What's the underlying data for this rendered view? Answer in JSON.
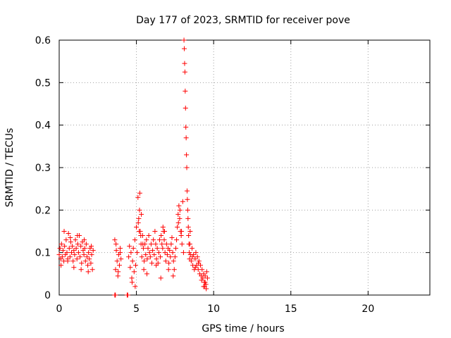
{
  "chart_data": {
    "type": "scatter",
    "title": "Day 177 of 2023, SRMTID for receiver pove",
    "xlabel": "GPS time / hours",
    "ylabel": "SRMTID / TECUs",
    "xlim": [
      0,
      24
    ],
    "ylim": [
      0,
      0.6
    ],
    "xticks": [
      0,
      5,
      10,
      15,
      20
    ],
    "xtick_labels": [
      "0",
      "5",
      "10",
      "15",
      "20"
    ],
    "yticks": [
      0,
      0.1,
      0.2,
      0.3,
      0.4,
      0.5,
      0.6
    ],
    "ytick_labels": [
      "0",
      "0.1",
      "0.2",
      "0.3",
      "0.4",
      "0.5",
      "0.6"
    ],
    "grid": true,
    "marker": "+",
    "color": "#ff0000",
    "series": [
      {
        "name": "SRMTID",
        "x": [
          0.0,
          0.05,
          0.1,
          0.15,
          0.2,
          0.25,
          0.3,
          0.35,
          0.4,
          0.45,
          0.5,
          0.55,
          0.6,
          0.65,
          0.7,
          0.75,
          0.8,
          0.85,
          0.9,
          0.95,
          1.0,
          1.05,
          1.1,
          1.15,
          1.2,
          1.25,
          1.3,
          1.35,
          1.4,
          1.45,
          1.5,
          1.55,
          1.6,
          1.65,
          1.7,
          1.75,
          1.8,
          1.85,
          1.9,
          1.95,
          2.0,
          2.05,
          2.1,
          2.15,
          2.2,
          0.12,
          0.32,
          0.55,
          0.72,
          0.95,
          1.18,
          1.42,
          1.62,
          1.88,
          2.08,
          3.6,
          3.65,
          3.7,
          3.75,
          3.8,
          3.85,
          3.9,
          3.95,
          4.0,
          3.68,
          3.82,
          3.95,
          4.5,
          4.55,
          4.6,
          4.65,
          4.7,
          4.75,
          4.8,
          4.85,
          4.9,
          4.95,
          5.0,
          5.05,
          5.1,
          5.15,
          5.2,
          5.25,
          5.3,
          5.35,
          5.4,
          5.45,
          5.5,
          5.55,
          5.6,
          5.65,
          5.7,
          5.75,
          5.8,
          5.85,
          5.9,
          5.95,
          6.0,
          6.05,
          6.1,
          6.15,
          6.2,
          6.25,
          6.3,
          6.35,
          6.4,
          6.45,
          6.5,
          6.55,
          6.6,
          6.65,
          6.7,
          6.75,
          6.8,
          6.85,
          6.9,
          6.95,
          7.0,
          7.05,
          7.1,
          7.15,
          7.2,
          7.25,
          7.3,
          7.35,
          7.4,
          7.45,
          7.5,
          7.55,
          7.6,
          7.65,
          7.7,
          7.75,
          7.8,
          7.85,
          7.9,
          7.95,
          8.0,
          5.12,
          5.22,
          5.32,
          5.42,
          5.18,
          5.28,
          6.72,
          6.82,
          7.72,
          7.82,
          7.92,
          4.72,
          4.92,
          5.48,
          5.68,
          6.28,
          6.58,
          7.08,
          7.38,
          8.05,
          8.08,
          8.1,
          8.12,
          8.14,
          8.16,
          8.18,
          8.2,
          8.22,
          8.24,
          8.26,
          8.28,
          8.3,
          8.32,
          8.34,
          8.36,
          8.38,
          8.4,
          8.42,
          8.44,
          8.46,
          8.48,
          8.5,
          8.55,
          8.6,
          8.65,
          8.7,
          8.75,
          8.8,
          8.85,
          8.9,
          8.95,
          9.0,
          9.05,
          9.1,
          9.15,
          9.2,
          9.25,
          9.3,
          9.35,
          9.4,
          9.45,
          9.5,
          9.55,
          9.6,
          8.62,
          8.82,
          9.02,
          9.22,
          9.42,
          9.52,
          9.35,
          9.45,
          3.6,
          3.62,
          3.64,
          4.4,
          4.42,
          4.44
        ],
        "y": [
          0.095,
          0.11,
          0.085,
          0.12,
          0.09,
          0.105,
          0.08,
          0.115,
          0.095,
          0.13,
          0.1,
          0.085,
          0.145,
          0.11,
          0.09,
          0.125,
          0.1,
          0.115,
          0.08,
          0.105,
          0.095,
          0.13,
          0.11,
          0.085,
          0.12,
          0.1,
          0.14,
          0.09,
          0.115,
          0.075,
          0.125,
          0.105,
          0.095,
          0.11,
          0.08,
          0.12,
          0.09,
          0.07,
          0.1,
          0.085,
          0.11,
          0.075,
          0.095,
          0.06,
          0.105,
          0.07,
          0.15,
          0.08,
          0.135,
          0.065,
          0.14,
          0.06,
          0.13,
          0.055,
          0.115,
          0.13,
          0.06,
          0.105,
          0.08,
          0.045,
          0.095,
          0.07,
          0.11,
          0.085,
          0.12,
          0.055,
          0.1,
          0.09,
          0.115,
          0.065,
          0.1,
          0.04,
          0.08,
          0.11,
          0.055,
          0.13,
          0.07,
          0.16,
          0.1,
          0.23,
          0.18,
          0.2,
          0.15,
          0.12,
          0.09,
          0.14,
          0.11,
          0.08,
          0.12,
          0.095,
          0.13,
          0.085,
          0.11,
          0.14,
          0.1,
          0.09,
          0.12,
          0.075,
          0.105,
          0.13,
          0.095,
          0.15,
          0.12,
          0.085,
          0.11,
          0.075,
          0.1,
          0.13,
          0.09,
          0.14,
          0.12,
          0.11,
          0.15,
          0.13,
          0.1,
          0.08,
          0.12,
          0.095,
          0.11,
          0.075,
          0.105,
          0.09,
          0.12,
          0.135,
          0.1,
          0.08,
          0.06,
          0.09,
          0.11,
          0.13,
          0.16,
          0.19,
          0.21,
          0.18,
          0.15,
          0.14,
          0.12,
          0.22,
          0.17,
          0.24,
          0.19,
          0.12,
          0.15,
          0.14,
          0.16,
          0.15,
          0.17,
          0.2,
          0.15,
          0.03,
          0.02,
          0.06,
          0.05,
          0.07,
          0.04,
          0.06,
          0.045,
          0.1,
          0.6,
          0.58,
          0.545,
          0.525,
          0.48,
          0.44,
          0.395,
          0.37,
          0.33,
          0.3,
          0.245,
          0.225,
          0.2,
          0.18,
          0.16,
          0.14,
          0.12,
          0.1,
          0.085,
          0.12,
          0.15,
          0.095,
          0.08,
          0.11,
          0.07,
          0.095,
          0.06,
          0.085,
          0.1,
          0.07,
          0.09,
          0.06,
          0.08,
          0.05,
          0.07,
          0.045,
          0.06,
          0.04,
          0.05,
          0.03,
          0.045,
          0.025,
          0.055,
          0.04,
          0.09,
          0.065,
          0.075,
          0.035,
          0.02,
          0.015,
          0.02,
          0.03,
          0.0,
          0.0,
          0.0,
          0.0,
          0.0,
          0.0
        ]
      }
    ]
  }
}
